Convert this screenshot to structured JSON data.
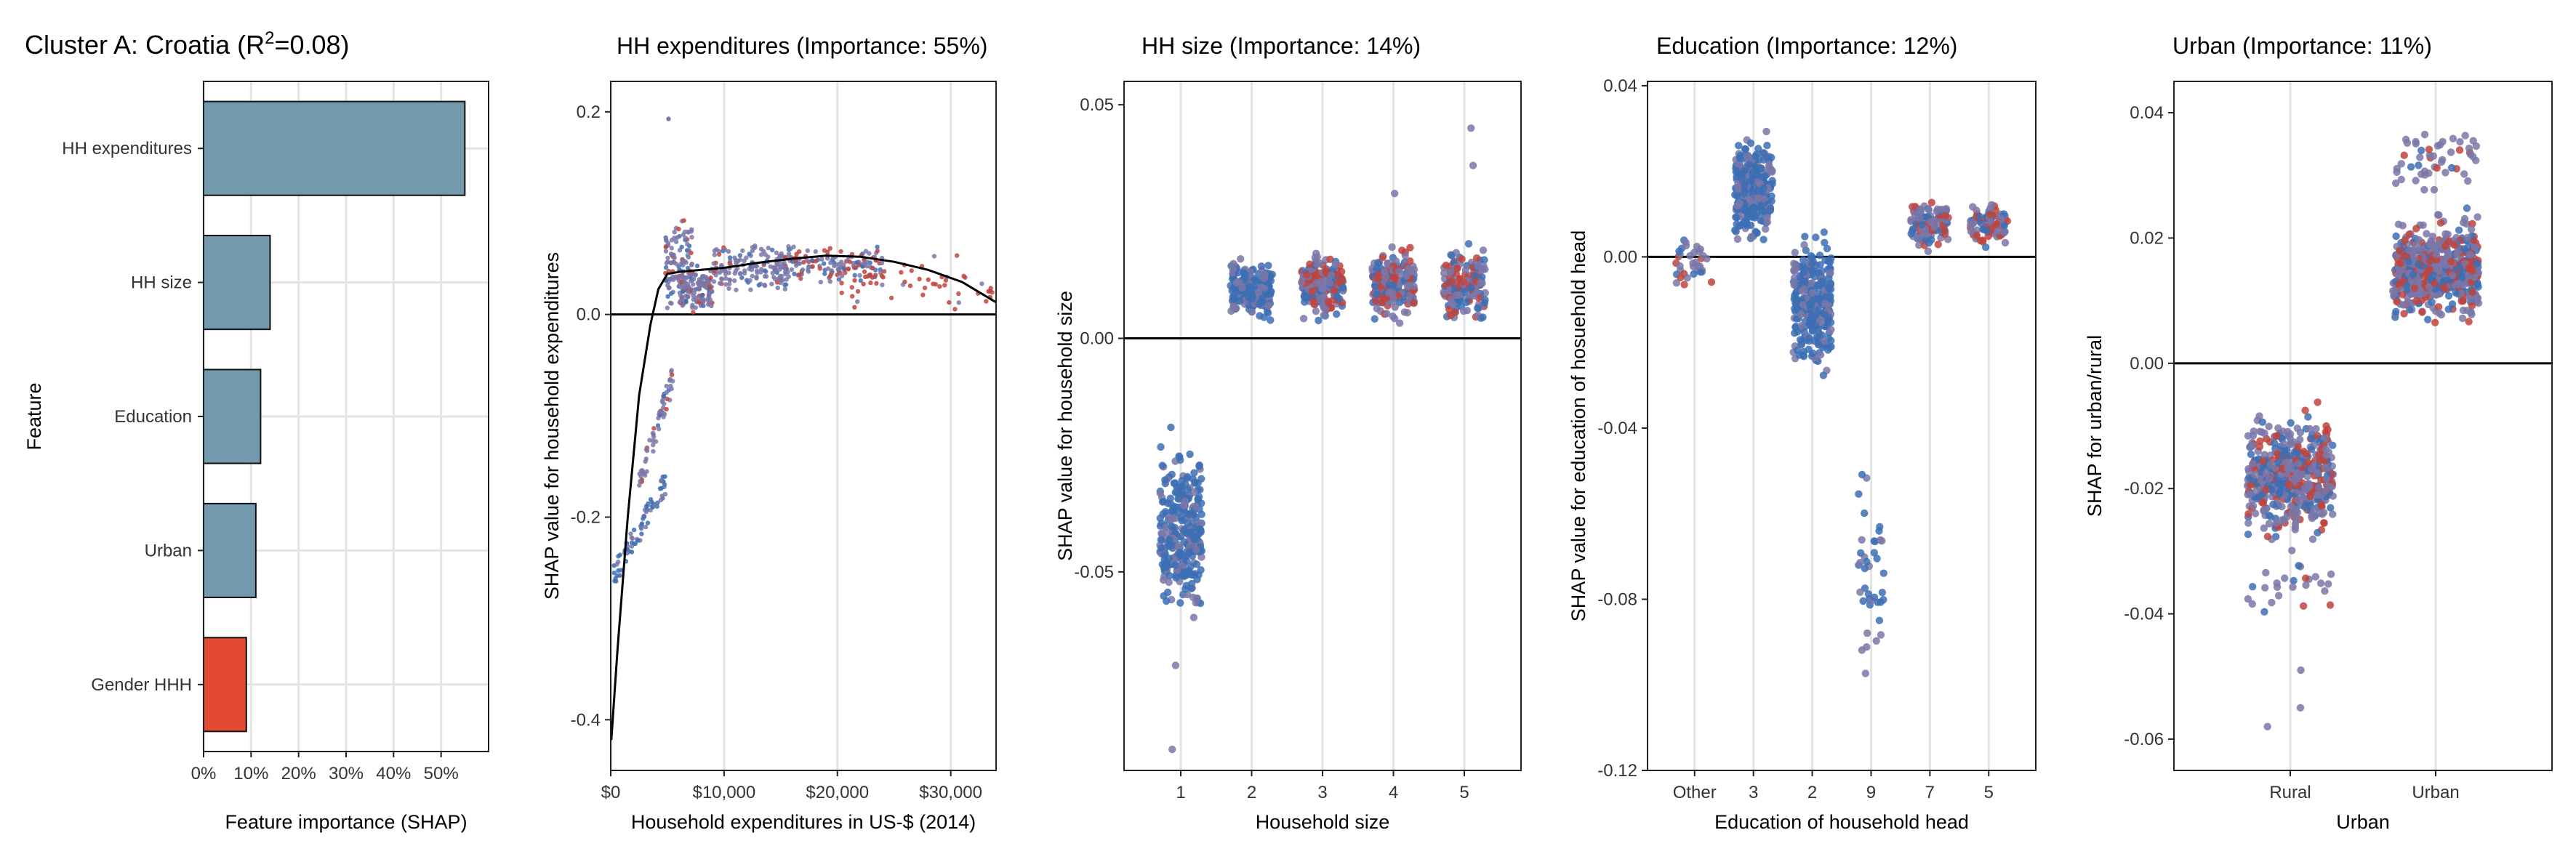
{
  "page": {
    "title_prefix": "Cluster A: Croatia (R",
    "title_sup": "2",
    "title_suffix": "=0.08)"
  },
  "colors": {
    "bar_fill": "#7399ad",
    "bar_highlight": "#e34a33",
    "point_blue": "#3c6fb4",
    "point_purple": "#7a77a8",
    "point_red": "#c0443d",
    "frame": "#222222",
    "grid": "#e4e4e4",
    "smooth": "#000000"
  },
  "chart_data": [
    {
      "id": "importance",
      "type": "bar",
      "orientation": "horizontal",
      "title": "",
      "xlabel": "Feature importance (SHAP)",
      "ylabel": "Feature",
      "categories": [
        "HH expenditures",
        "HH size",
        "Education",
        "Urban",
        "Gender HHH"
      ],
      "values": [
        55,
        14,
        12,
        11,
        9
      ],
      "highlight": "Gender HHH",
      "xlim": [
        0,
        60
      ],
      "xticks": [
        0,
        10,
        20,
        30,
        40,
        50
      ],
      "xtick_labels": [
        "0%",
        "10%",
        "20%",
        "30%",
        "40%",
        "50%"
      ],
      "grid": true
    },
    {
      "id": "expenditures",
      "type": "scatter",
      "title": "HH expenditures (Importance: 55%)",
      "xlabel": "Household expenditures in US-$ (2014)",
      "ylabel": "SHAP value for household expenditures",
      "xlim": [
        0,
        34000
      ],
      "ylim": [
        -0.45,
        0.23
      ],
      "xticks": [
        0,
        10000,
        20000,
        30000
      ],
      "xtick_labels": [
        "$0",
        "$10,000",
        "$20,000",
        "$30,000"
      ],
      "yticks": [
        -0.4,
        -0.2,
        0.0,
        0.2
      ],
      "ytick_labels": [
        "-0.4",
        "-0.2",
        "0.0",
        "0.2"
      ],
      "zero_line": true,
      "smooth": [
        [
          50,
          -0.42
        ],
        [
          600,
          -0.33
        ],
        [
          1500,
          -0.2
        ],
        [
          2500,
          -0.08
        ],
        [
          3500,
          -0.01
        ],
        [
          4200,
          0.025
        ],
        [
          5000,
          0.04
        ],
        [
          6000,
          0.042
        ],
        [
          8000,
          0.044
        ],
        [
          10000,
          0.046
        ],
        [
          13000,
          0.051
        ],
        [
          16000,
          0.055
        ],
        [
          19000,
          0.058
        ],
        [
          22000,
          0.057
        ],
        [
          25000,
          0.052
        ],
        [
          28000,
          0.044
        ],
        [
          31000,
          0.032
        ],
        [
          34000,
          0.012
        ]
      ],
      "point_groups": [
        {
          "x": [
            300,
            5000
          ],
          "y": [
            -0.27,
            -0.15
          ],
          "n": 75,
          "color": "blue",
          "corr": 1
        },
        {
          "x": [
            2500,
            5500
          ],
          "y": [
            -0.18,
            -0.05
          ],
          "n": 60,
          "color": "purple",
          "corr": 1
        },
        {
          "x": [
            4800,
            7200
          ],
          "y": [
            0.0,
            0.1
          ],
          "n": 110,
          "color": "purple"
        },
        {
          "x": [
            6000,
            9000
          ],
          "y": [
            0.0,
            0.05
          ],
          "n": 130,
          "color": "purple"
        },
        {
          "x": [
            9000,
            16000
          ],
          "y": [
            0.02,
            0.07
          ],
          "n": 170,
          "color": "purple"
        },
        {
          "x": [
            16000,
            24000
          ],
          "y": [
            0.03,
            0.068
          ],
          "n": 130,
          "color": "mixed"
        },
        {
          "x": [
            20000,
            34000
          ],
          "y": [
            0.0,
            0.06
          ],
          "n": 55,
          "color": "red"
        }
      ],
      "outliers": [
        [
          5100,
          0.193
        ]
      ]
    },
    {
      "id": "hhsize",
      "type": "scatter",
      "title": "HH size (Importance: 14%)",
      "xlabel": "Household size",
      "ylabel": "SHAP value for household size",
      "categories": [
        "1",
        "2",
        "3",
        "4",
        "5"
      ],
      "ylim": [
        -0.0925,
        0.055
      ],
      "yticks": [
        -0.05,
        0.0,
        0.05
      ],
      "ytick_labels": [
        "-0.05",
        "0.00",
        "0.05"
      ],
      "zero_line": true,
      "point_groups": [
        {
          "cat": 0,
          "y": [
            -0.066,
            -0.017
          ],
          "n": 300,
          "color": "blue"
        },
        {
          "cat": 1,
          "y": [
            0.002,
            0.019
          ],
          "n": 220,
          "color": "blue"
        },
        {
          "cat": 2,
          "y": [
            0.002,
            0.021
          ],
          "n": 220,
          "color": "mixed"
        },
        {
          "cat": 3,
          "y": [
            0.001,
            0.022
          ],
          "n": 200,
          "color": "mixed"
        },
        {
          "cat": 4,
          "y": [
            0.0,
            0.023
          ],
          "n": 160,
          "color": "mixed"
        }
      ],
      "outliers": [
        [
          0,
          -0.07
        ],
        [
          0,
          -0.088
        ],
        [
          3,
          0.031
        ],
        [
          4,
          0.045
        ],
        [
          4,
          0.037
        ]
      ]
    },
    {
      "id": "education",
      "type": "scatter",
      "title": "Education (Importance: 12%)",
      "xlabel": "Education of household head",
      "ylabel": "SHAP value for education of hosuehold head",
      "categories": [
        "Other",
        "3",
        "2",
        "9",
        "7",
        "5"
      ],
      "ylim": [
        -0.12,
        0.041
      ],
      "yticks": [
        -0.12,
        -0.08,
        -0.04,
        0.0,
        0.04
      ],
      "ytick_labels": [
        "-0.12",
        "-0.08",
        "-0.04",
        "0.00",
        "0.04"
      ],
      "zero_line": true,
      "point_groups": [
        {
          "cat": 0,
          "y": [
            -0.011,
            0.007
          ],
          "n": 35,
          "color": "purple"
        },
        {
          "cat": 1,
          "y": [
            -0.001,
            0.034
          ],
          "n": 280,
          "color": "blue"
        },
        {
          "cat": 2,
          "y": [
            -0.034,
            0.012
          ],
          "n": 300,
          "color": "blue"
        },
        {
          "cat": 3,
          "y": [
            -0.112,
            -0.035
          ],
          "n": 40,
          "color": "blue"
        },
        {
          "cat": 4,
          "y": [
            -0.001,
            0.016
          ],
          "n": 110,
          "color": "mixed"
        },
        {
          "cat": 5,
          "y": [
            0.0,
            0.015
          ],
          "n": 90,
          "color": "mixed"
        }
      ],
      "outliers": []
    },
    {
      "id": "urban",
      "type": "scatter",
      "title": "Urban (Importance: 11%)",
      "xlabel": "Urban",
      "ylabel": "SHAP for urban/rural",
      "categories": [
        "Rural",
        "Urban"
      ],
      "ylim": [
        -0.065,
        0.045
      ],
      "yticks": [
        -0.06,
        -0.04,
        -0.02,
        0.0,
        0.02,
        0.04
      ],
      "ytick_labels": [
        "-0.06",
        "-0.04",
        "-0.02",
        "0.00",
        "0.02",
        "0.04"
      ],
      "zero_line": true,
      "point_groups": [
        {
          "cat": 0,
          "y": [
            -0.032,
            -0.004
          ],
          "n": 520,
          "color": "mixed"
        },
        {
          "cat": 0,
          "y": [
            -0.042,
            -0.03
          ],
          "n": 25,
          "color": "purple"
        },
        {
          "cat": 1,
          "y": [
            0.004,
            0.026
          ],
          "n": 600,
          "color": "mixed"
        },
        {
          "cat": 1,
          "y": [
            0.025,
            0.041
          ],
          "n": 50,
          "color": "purple"
        }
      ],
      "outliers": [
        [
          0,
          -0.049
        ],
        [
          0,
          -0.055
        ],
        [
          0,
          -0.058
        ]
      ]
    }
  ]
}
